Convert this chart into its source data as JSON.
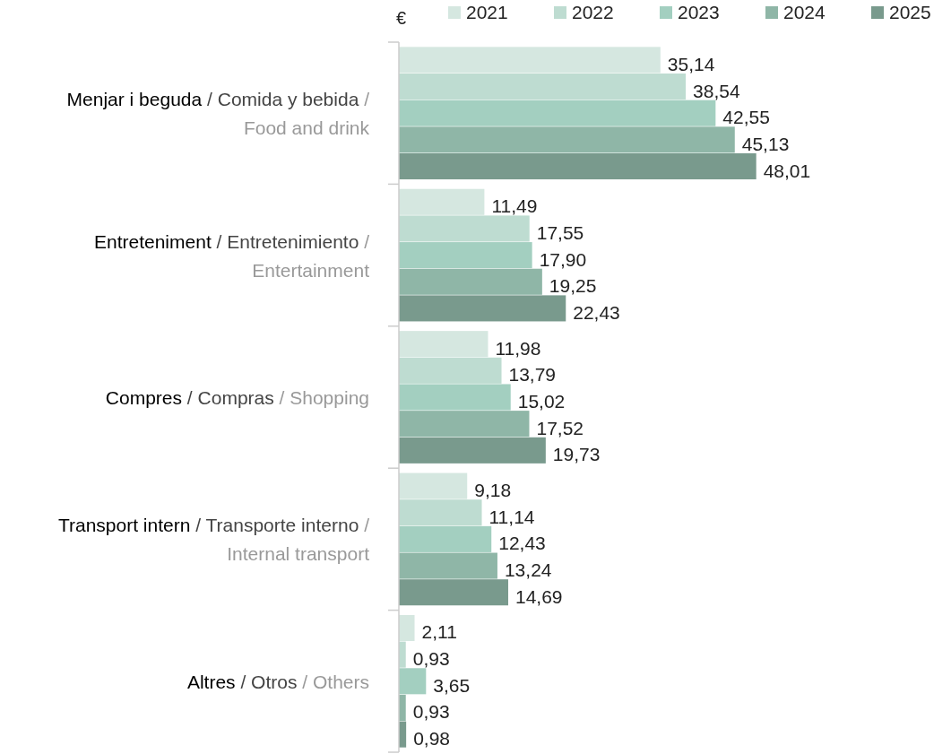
{
  "chart_data": {
    "type": "bar",
    "orientation": "horizontal",
    "xlabel": "€",
    "legend": "top",
    "categories": [
      "Menjar i beguda / Comida y bebida / Food and drink",
      "Entreteniment / Entretenimiento / Entertainment",
      "Compres / Compras / Shopping",
      "Transport intern / Transporte interno / Internal transport",
      "Altres / Otros / Others"
    ],
    "series": [
      {
        "name": "2021",
        "color": "#d5e7e0",
        "values": [
          35.14,
          11.49,
          11.98,
          9.18,
          2.11
        ],
        "value_labels": [
          "35,14",
          "11,49",
          "11,98",
          "9,18",
          "2,11"
        ]
      },
      {
        "name": "2022",
        "color": "#bedcd1",
        "values": [
          38.54,
          17.55,
          13.79,
          11.14,
          0.93
        ],
        "value_labels": [
          "38,54",
          "17,55",
          "13,79",
          "11,14",
          "0,93"
        ]
      },
      {
        "name": "2023",
        "color": "#a3cfc0",
        "values": [
          42.55,
          17.9,
          15.02,
          12.43,
          3.65
        ],
        "value_labels": [
          "42,55",
          "17,90",
          "15,02",
          "12,43",
          "3,65"
        ]
      },
      {
        "name": "2024",
        "color": "#8fb6a7",
        "values": [
          45.13,
          19.25,
          17.52,
          13.24,
          0.93
        ],
        "value_labels": [
          "45,13",
          "19,25",
          "17,52",
          "13,24",
          "0,93"
        ]
      },
      {
        "name": "2025",
        "color": "#799a8d",
        "values": [
          48.01,
          22.43,
          19.73,
          14.69,
          0.98
        ],
        "value_labels": [
          "48,01",
          "22,43",
          "19,73",
          "14,69",
          "0,98"
        ]
      }
    ]
  }
}
